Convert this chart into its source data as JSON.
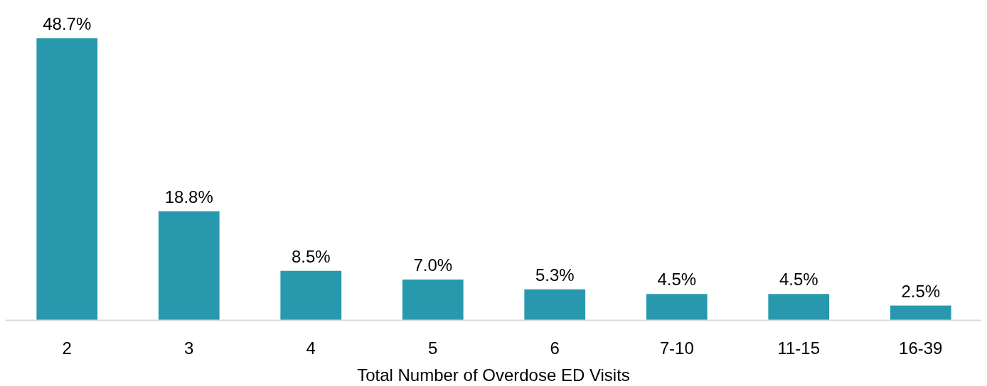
{
  "chart_data": {
    "type": "bar",
    "xlabel": "Total Number of Overdose ED Visits",
    "categories": [
      "2",
      "3",
      "4",
      "5",
      "6",
      "7-10",
      "11-15",
      "16-39"
    ],
    "values": [
      48.7,
      18.8,
      8.5,
      7.0,
      5.3,
      4.5,
      4.5,
      2.5
    ],
    "value_labels": [
      "48.7%",
      "18.8%",
      "8.5%",
      "7.0%",
      "5.3%",
      "4.5%",
      "4.5%",
      "2.5%"
    ],
    "color": "#2899ad"
  }
}
